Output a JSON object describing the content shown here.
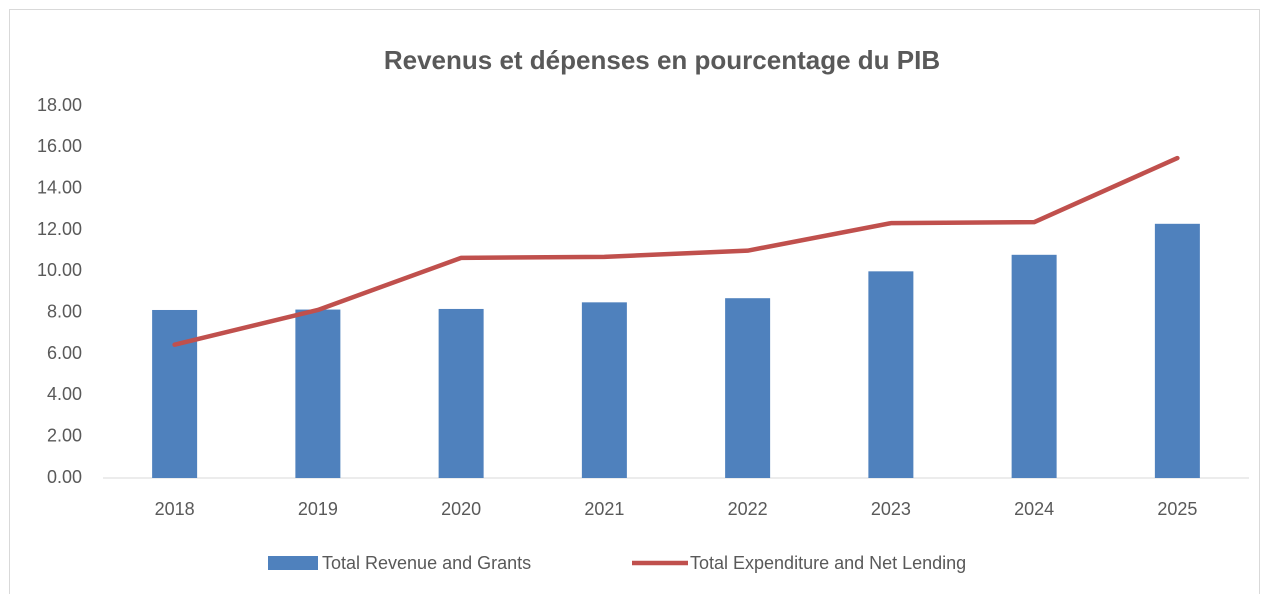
{
  "chart_data": {
    "type": "bar",
    "title": "Revenus et dépenses en pourcentage du PIB",
    "categories": [
      "2018",
      "2019",
      "2020",
      "2021",
      "2022",
      "2023",
      "2024",
      "2025"
    ],
    "series": [
      {
        "name": "Total Revenue and Grants",
        "type": "bar",
        "color": "#4f81bd",
        "values": [
          8.13,
          8.15,
          8.18,
          8.5,
          8.7,
          10.0,
          10.8,
          12.3
        ]
      },
      {
        "name": "Total Expenditure and Net Lending",
        "type": "line",
        "color": "#c0504d",
        "values": [
          6.45,
          8.13,
          10.65,
          10.7,
          11.0,
          12.33,
          12.38,
          15.48
        ]
      }
    ],
    "ylim": [
      0,
      18
    ],
    "yticks": [
      {
        "value": 0,
        "label": "0.00"
      },
      {
        "value": 2,
        "label": "2.00"
      },
      {
        "value": 4,
        "label": "4.00"
      },
      {
        "value": 6,
        "label": "6.00"
      },
      {
        "value": 8,
        "label": "8.00"
      },
      {
        "value": 10,
        "label": "10.00"
      },
      {
        "value": 12,
        "label": "12.00"
      },
      {
        "value": 14,
        "label": "14.00"
      },
      {
        "value": 16,
        "label": "16.00"
      },
      {
        "value": 18,
        "label": "18.00"
      }
    ],
    "grid": false,
    "legend": "bottom"
  }
}
